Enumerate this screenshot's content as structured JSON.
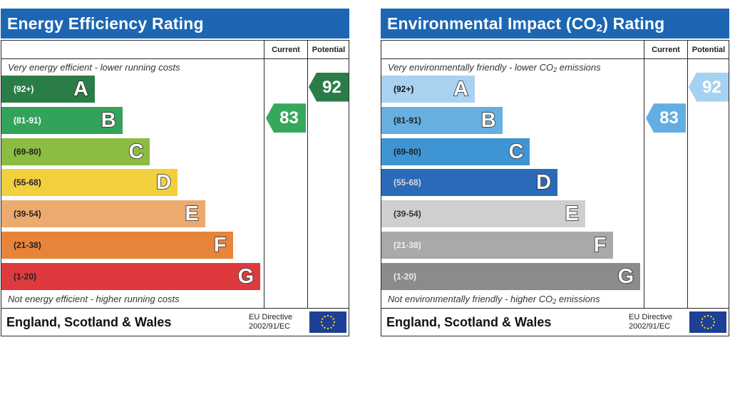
{
  "chart_data": [
    {
      "type": "table",
      "title": "Energy Efficiency Rating",
      "columns": [
        "Current",
        "Potential"
      ],
      "top_caption": "Very energy efficient - lower running costs",
      "bottom_caption": "Not energy efficient - higher running costs",
      "bands": [
        {
          "letter": "A",
          "range": "(92+)",
          "color": "#2b7d47",
          "text_color": "#ffffff"
        },
        {
          "letter": "B",
          "range": "(81-91)",
          "color": "#33a35a",
          "text_color": "#ffffff"
        },
        {
          "letter": "C",
          "range": "(69-80)",
          "color": "#8cbc42",
          "text_color": "#222222"
        },
        {
          "letter": "D",
          "range": "(55-68)",
          "color": "#f2cf3c",
          "text_color": "#222222"
        },
        {
          "letter": "E",
          "range": "(39-54)",
          "color": "#edaa6e",
          "text_color": "#222222"
        },
        {
          "letter": "F",
          "range": "(21-38)",
          "color": "#e7843a",
          "text_color": "#222222"
        },
        {
          "letter": "G",
          "range": "(1-20)",
          "color": "#de3a3e",
          "text_color": "#222222"
        }
      ],
      "current": {
        "value": 83,
        "label": "83",
        "color": "#36a85c"
      },
      "potential": {
        "value": 92,
        "label": "92",
        "color": "#2b7d47"
      },
      "region": "England, Scotland & Wales",
      "directive_line1": "EU Directive",
      "directive_line2": "2002/91/EC"
    },
    {
      "type": "table",
      "title_pre": "Environmental Impact (CO",
      "title_sub": "2",
      "title_post": ") Rating",
      "columns": [
        "Current",
        "Potential"
      ],
      "top_caption_pre": "Very environmentally friendly - lower CO",
      "top_caption_sub": "2",
      "top_caption_post": " emissions",
      "bottom_caption_pre": "Not environmentally friendly - higher CO",
      "bottom_caption_sub": "2",
      "bottom_caption_post": " emissions",
      "bands": [
        {
          "letter": "A",
          "range": "(92+)",
          "color": "#a8d2f0",
          "text_color": "#111111"
        },
        {
          "letter": "B",
          "range": "(81-91)",
          "color": "#66afe0",
          "text_color": "#222222"
        },
        {
          "letter": "C",
          "range": "(69-80)",
          "color": "#3f95d4",
          "text_color": "#222222"
        },
        {
          "letter": "D",
          "range": "(55-68)",
          "color": "#2a6ab8",
          "text_color": "#d8d8d8"
        },
        {
          "letter": "E",
          "range": "(39-54)",
          "color": "#cfcfcf",
          "text_color": "#333333"
        },
        {
          "letter": "F",
          "range": "(21-38)",
          "color": "#a9a9a9",
          "text_color": "#eeeeee"
        },
        {
          "letter": "G",
          "range": "(1-20)",
          "color": "#8b8b8b",
          "text_color": "#eeeeee"
        }
      ],
      "current": {
        "value": 83,
        "label": "83",
        "color": "#62aee3"
      },
      "potential": {
        "value": 92,
        "label": "92",
        "color": "#a6d1f0"
      },
      "region": "England, Scotland & Wales",
      "directive_line1": "EU Directive",
      "directive_line2": "2002/91/EC"
    }
  ]
}
